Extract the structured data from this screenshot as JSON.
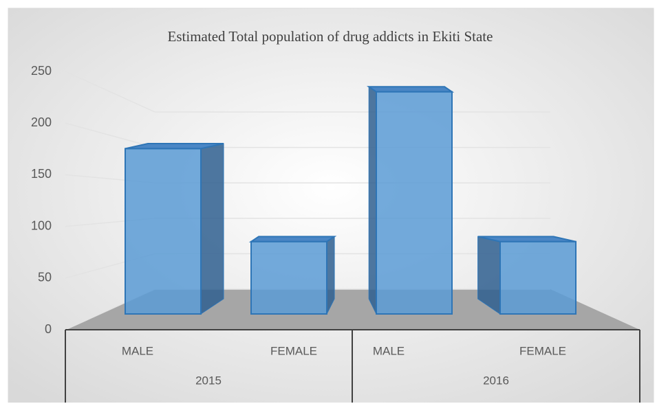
{
  "chart_data": {
    "type": "bar3d",
    "title": "Estimated Total population of drug addicts in Ekiti State",
    "categories": [
      "MALE",
      "FEMALE",
      "MALE",
      "FEMALE"
    ],
    "groups": [
      "2015",
      "2016"
    ],
    "values": [
      160,
      70,
      215,
      70
    ],
    "color": "#5b9bd5",
    "ylim": [
      0,
      250
    ],
    "yticks": [
      0,
      50,
      100,
      150,
      200,
      250
    ],
    "grid": true
  }
}
